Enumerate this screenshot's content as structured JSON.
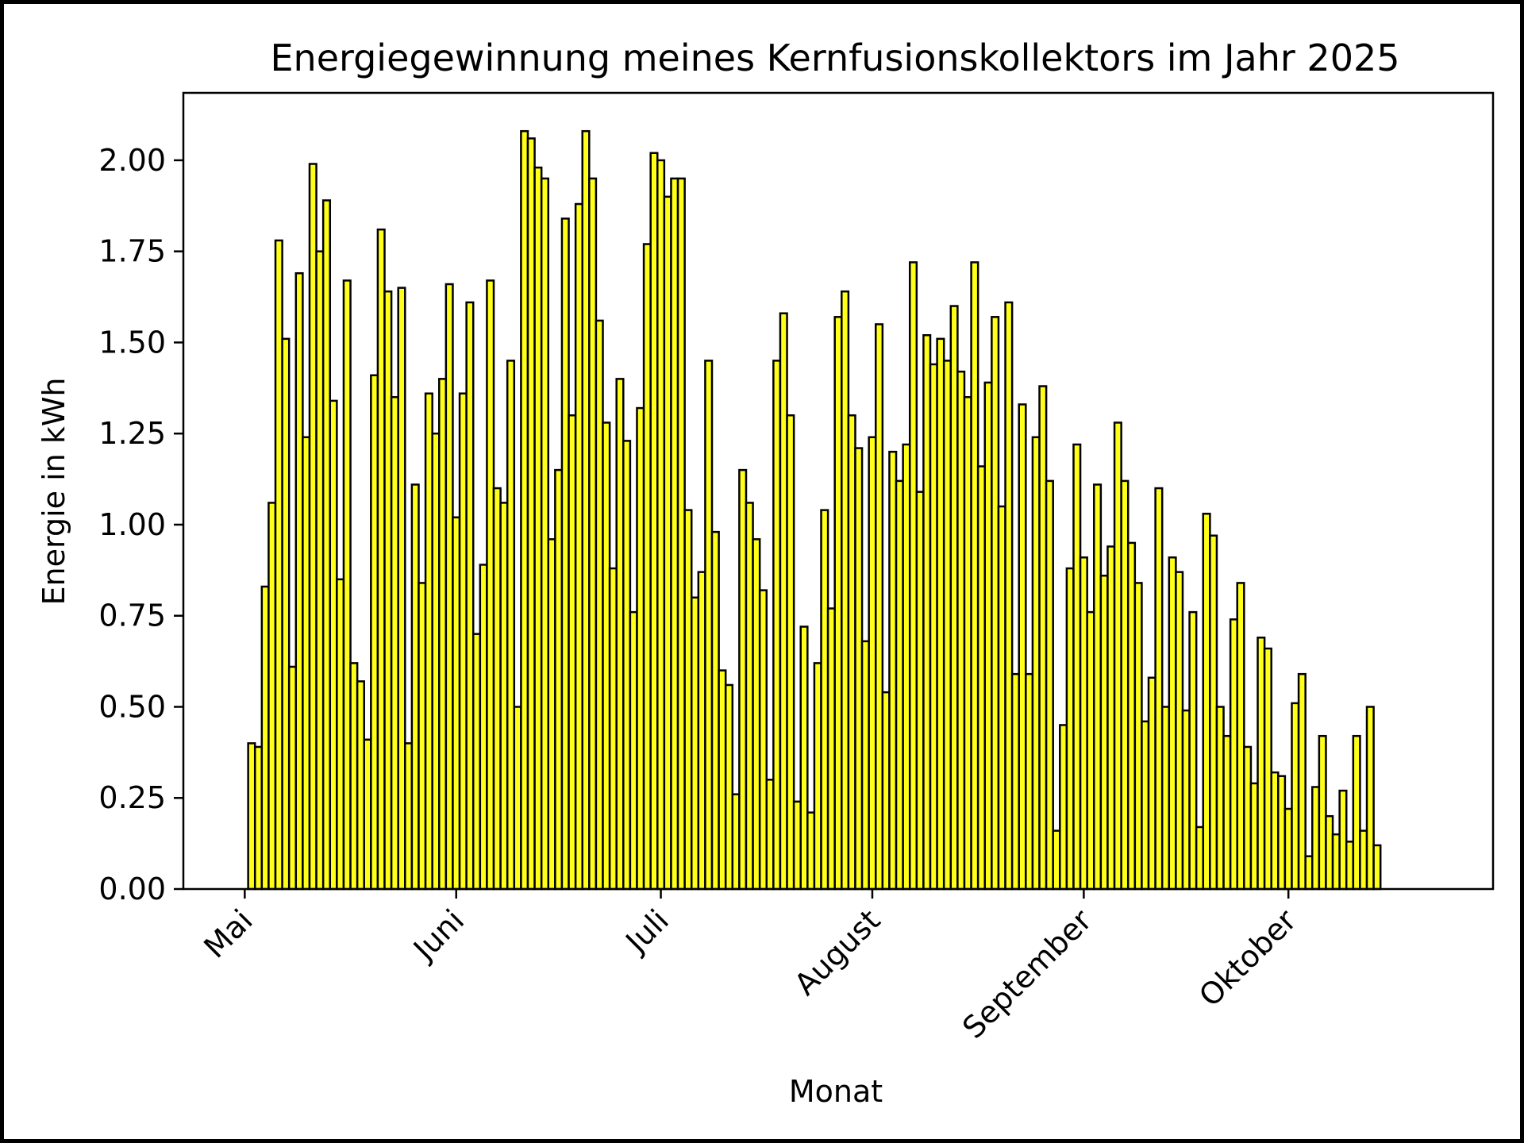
{
  "chart_data": {
    "type": "bar",
    "title": "Energiegewinnung meines Kernfusionskollektors im Jahr 2025",
    "xlabel": "Monat",
    "ylabel": "Energie in kWh",
    "x_range": [
      "2025-04-22",
      "2025-10-31"
    ],
    "ylim": [
      0,
      2.185
    ],
    "grid": false,
    "legend": "none",
    "x_ticks": [
      {
        "label": "Mai",
        "date": "2025-05-01"
      },
      {
        "label": "Juni",
        "date": "2025-06-01"
      },
      {
        "label": "Juli",
        "date": "2025-07-01"
      },
      {
        "label": "August",
        "date": "2025-08-01"
      },
      {
        "label": "September",
        "date": "2025-09-01"
      },
      {
        "label": "Oktober",
        "date": "2025-10-01"
      }
    ],
    "y_ticks": [
      "0.00",
      "0.25",
      "0.50",
      "0.75",
      "1.00",
      "1.25",
      "1.50",
      "1.75",
      "2.00"
    ],
    "bar_color": "#ffff1a",
    "edge_color": "#000000",
    "start_date": "2025-05-01",
    "values": [
      0.0,
      0.4,
      0.39,
      0.83,
      1.06,
      1.78,
      1.51,
      0.61,
      1.69,
      1.24,
      1.99,
      1.75,
      1.89,
      1.34,
      0.85,
      1.67,
      0.62,
      0.57,
      0.41,
      1.41,
      1.81,
      1.64,
      1.35,
      1.65,
      0.4,
      1.11,
      0.84,
      1.36,
      1.25,
      1.4,
      1.66,
      1.02,
      1.36,
      1.61,
      0.7,
      0.89,
      1.67,
      1.1,
      1.06,
      1.45,
      0.5,
      2.08,
      2.06,
      1.98,
      1.95,
      0.96,
      1.15,
      1.84,
      1.3,
      1.88,
      2.08,
      1.95,
      1.56,
      1.28,
      0.88,
      1.4,
      1.23,
      0.76,
      1.32,
      1.77,
      2.02,
      2.0,
      1.9,
      1.95,
      1.95,
      1.04,
      0.8,
      0.87,
      1.45,
      0.98,
      0.6,
      0.56,
      0.26,
      1.15,
      1.06,
      0.96,
      0.82,
      0.3,
      1.45,
      1.58,
      1.3,
      0.24,
      0.72,
      0.21,
      0.62,
      1.04,
      0.77,
      1.57,
      1.64,
      1.3,
      1.21,
      0.68,
      1.24,
      1.55,
      0.54,
      1.2,
      1.12,
      1.22,
      1.72,
      1.09,
      1.52,
      1.44,
      1.51,
      1.45,
      1.6,
      1.42,
      1.35,
      1.72,
      1.16,
      1.39,
      1.57,
      1.05,
      1.61,
      0.59,
      1.33,
      0.59,
      1.24,
      1.38,
      1.12,
      0.16,
      0.45,
      0.88,
      1.22,
      0.91,
      0.76,
      1.11,
      0.86,
      0.94,
      1.28,
      1.12,
      0.95,
      0.84,
      0.46,
      0.58,
      1.1,
      0.5,
      0.91,
      0.87,
      0.49,
      0.76,
      0.17,
      1.03,
      0.97,
      0.5,
      0.42,
      0.74,
      0.84,
      0.39,
      0.29,
      0.69,
      0.66,
      0.32,
      0.31,
      0.22,
      0.51,
      0.59,
      0.09,
      0.28,
      0.42,
      0.2,
      0.15,
      0.27,
      0.13,
      0.42,
      0.16,
      0.5,
      0.12
    ]
  }
}
